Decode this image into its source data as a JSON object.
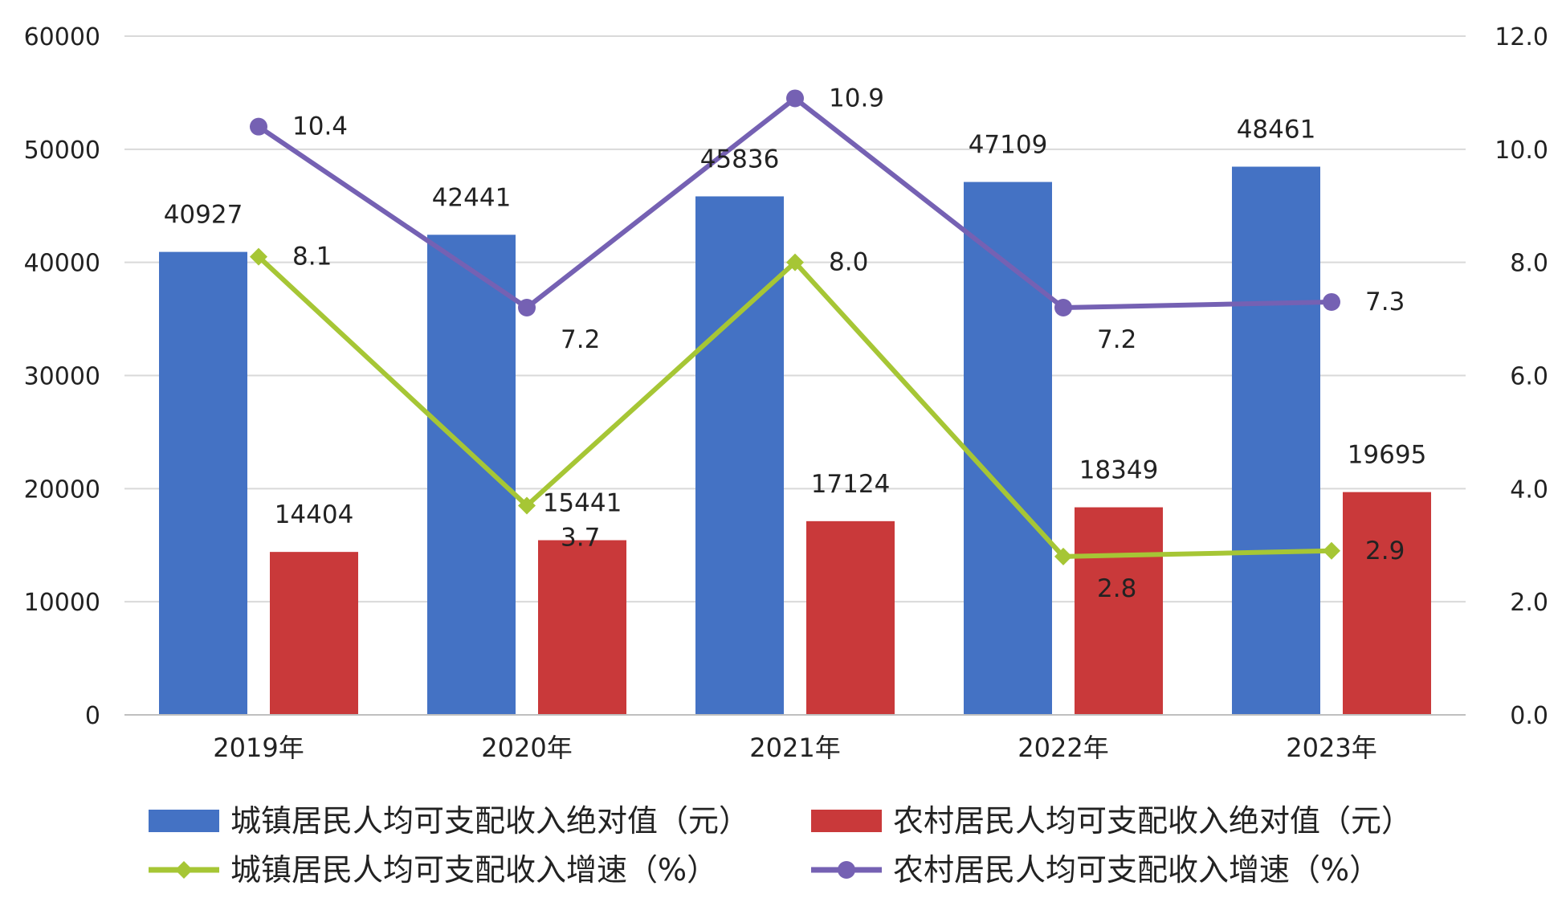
{
  "chart_data": {
    "type": "bar",
    "categories": [
      "2019年",
      "2020年",
      "2021年",
      "2022年",
      "2023年"
    ],
    "series": [
      {
        "name": "城镇居民人均可支配收入绝对值（元）",
        "kind": "bar",
        "axis": "left",
        "color": "#4472c4",
        "values": [
          40927,
          42441,
          45836,
          47109,
          48461
        ]
      },
      {
        "name": "农村居民人均可支配收入绝对值（元）",
        "kind": "bar",
        "axis": "left",
        "color": "#c9393a",
        "values": [
          14404,
          15441,
          17124,
          18349,
          19695
        ]
      },
      {
        "name": "城镇居民人均可支配收入增速（%）",
        "kind": "line",
        "axis": "right",
        "color": "#a6c635",
        "values": [
          8.1,
          3.7,
          8.0,
          2.8,
          2.9
        ]
      },
      {
        "name": "农村居民人均可支配收入增速（%）",
        "kind": "line",
        "axis": "right",
        "color": "#7561b3",
        "values": [
          10.4,
          7.2,
          10.9,
          7.2,
          7.3
        ]
      }
    ],
    "y_left": {
      "min": 0,
      "max": 60000,
      "ticks": [
        "0",
        "10000",
        "20000",
        "30000",
        "40000",
        "50000",
        "60000"
      ]
    },
    "y_right": {
      "min": 0,
      "max": 12,
      "ticks": [
        "0.0",
        "2.0",
        "4.0",
        "6.0",
        "8.0",
        "10.0",
        "12.0"
      ]
    },
    "grid": true,
    "legend_position": "bottom"
  }
}
